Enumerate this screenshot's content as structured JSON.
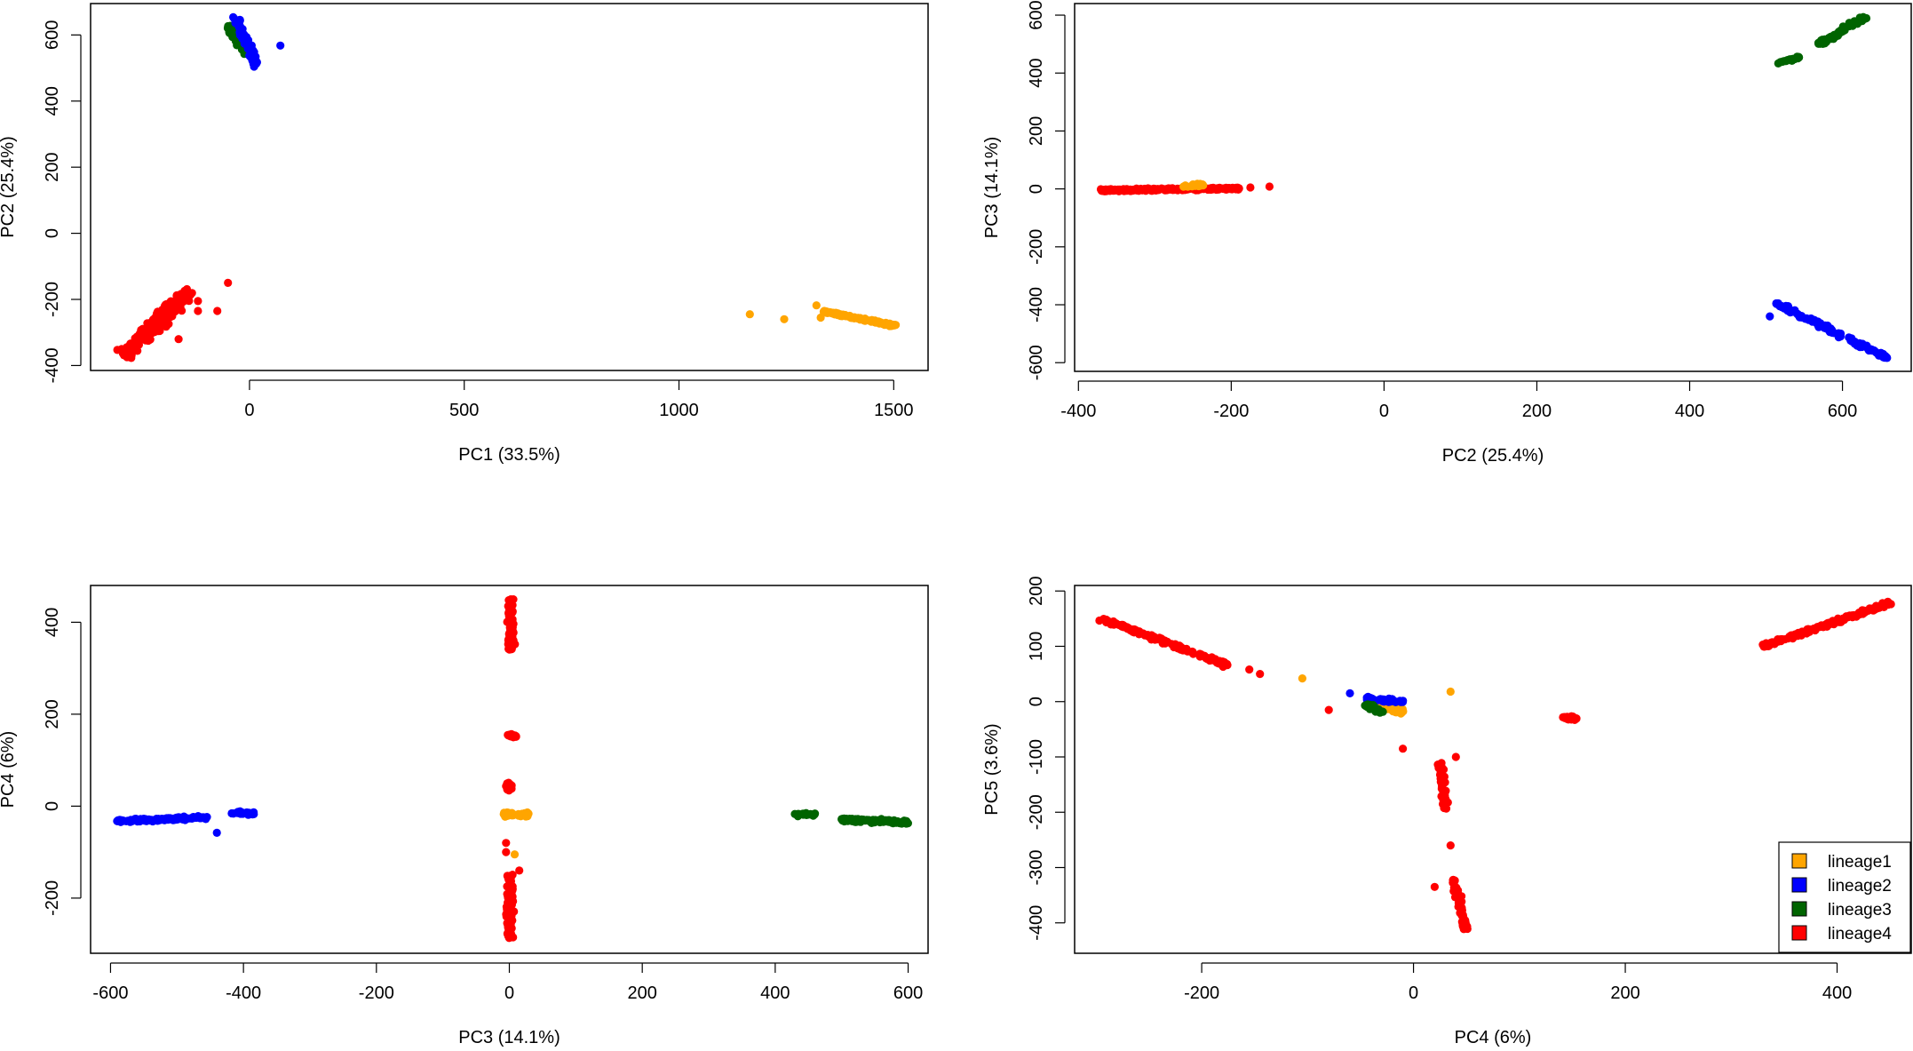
{
  "colors": {
    "lineage1": "#ffa500",
    "lineage2": "#0000ff",
    "lineage3": "#006400",
    "lineage4": "#ff0000"
  },
  "legend": {
    "placement": "bottom-right of PC4 vs PC5 panel",
    "entries": [
      "lineage1",
      "lineage2",
      "lineage3",
      "lineage4"
    ]
  },
  "chart_data": [
    {
      "type": "scatter",
      "title": "",
      "xlabel": "PC1 (33.5%)",
      "ylabel": "PC2 (25.4%)",
      "xlim": [
        -370,
        1580
      ],
      "ylim": [
        -415,
        695
      ],
      "xticks": [
        0,
        500,
        1000,
        1500
      ],
      "yticks": [
        -400,
        -200,
        0,
        200,
        400,
        600
      ],
      "clusters": [
        {
          "series": "lineage4",
          "kind": "band",
          "x1": -290,
          "y1": -365,
          "x2": -140,
          "y2": -175,
          "spread": 28,
          "n": 230
        },
        {
          "series": "lineage4",
          "kind": "points",
          "points": [
            [
              -50,
              -150
            ],
            [
              -75,
              -235
            ],
            [
              -120,
              -235
            ],
            [
              -165,
              -320
            ],
            [
              -120,
              -205
            ]
          ]
        },
        {
          "series": "lineage3",
          "kind": "band",
          "x1": -50,
          "y1": 625,
          "x2": -5,
          "y2": 545,
          "spread": 12,
          "n": 70
        },
        {
          "series": "lineage2",
          "kind": "band",
          "x1": -35,
          "y1": 655,
          "x2": 15,
          "y2": 510,
          "spread": 12,
          "n": 90
        },
        {
          "series": "lineage2",
          "kind": "points",
          "points": [
            [
              72,
              568
            ]
          ]
        },
        {
          "series": "lineage1",
          "kind": "band",
          "x1": 1330,
          "y1": -235,
          "x2": 1505,
          "y2": -280,
          "spread": 5,
          "n": 140
        },
        {
          "series": "lineage1",
          "kind": "points",
          "points": [
            [
              1165,
              -245
            ],
            [
              1245,
              -260
            ],
            [
              1320,
              -218
            ],
            [
              1330,
              -255
            ]
          ]
        }
      ]
    },
    {
      "type": "scatter",
      "title": "",
      "xlabel": "PC2 (25.4%)",
      "ylabel": "PC3 (14.1%)",
      "xlim": [
        -405,
        690
      ],
      "ylim": [
        -630,
        640
      ],
      "xticks": [
        -400,
        -200,
        0,
        200,
        400,
        600
      ],
      "yticks": [
        -600,
        -400,
        -200,
        0,
        200,
        400,
        600
      ],
      "clusters": [
        {
          "series": "lineage4",
          "kind": "band",
          "x1": -370,
          "y1": -5,
          "x2": -190,
          "y2": 2,
          "spread": 6,
          "n": 260
        },
        {
          "series": "lineage4",
          "kind": "points",
          "points": [
            [
              -150,
              8
            ],
            [
              -175,
              5
            ]
          ]
        },
        {
          "series": "lineage1",
          "kind": "band",
          "x1": -265,
          "y1": 10,
          "x2": -235,
          "y2": 15,
          "spread": 6,
          "n": 25
        },
        {
          "series": "lineage3",
          "kind": "band",
          "x1": 515,
          "y1": 433,
          "x2": 545,
          "y2": 455,
          "spread": 5,
          "n": 20
        },
        {
          "series": "lineage3",
          "kind": "band",
          "x1": 570,
          "y1": 500,
          "x2": 630,
          "y2": 595,
          "spread": 8,
          "n": 70
        },
        {
          "series": "lineage2",
          "kind": "band",
          "x1": 510,
          "y1": -390,
          "x2": 660,
          "y2": -585,
          "spread": 8,
          "n": 120
        },
        {
          "series": "lineage2",
          "kind": "points",
          "points": [
            [
              505,
              -440
            ]
          ]
        }
      ]
    },
    {
      "type": "scatter",
      "title": "",
      "xlabel": "PC3 (14.1%)",
      "ylabel": "PC4 (6%)",
      "xlim": [
        -630,
        630
      ],
      "ylim": [
        -320,
        480
      ],
      "xticks": [
        -600,
        -400,
        -200,
        0,
        200,
        400,
        600
      ],
      "yticks": [
        -200,
        0,
        200,
        400
      ],
      "clusters": [
        {
          "series": "lineage2",
          "kind": "band",
          "x1": -590,
          "y1": -33,
          "x2": -455,
          "y2": -25,
          "spread": 5,
          "n": 130
        },
        {
          "series": "lineage2",
          "kind": "band",
          "x1": -420,
          "y1": -15,
          "x2": -385,
          "y2": -15,
          "spread": 5,
          "n": 25
        },
        {
          "series": "lineage2",
          "kind": "points",
          "points": [
            [
              -440,
              -58
            ]
          ]
        },
        {
          "series": "lineage3",
          "kind": "band",
          "x1": 430,
          "y1": -18,
          "x2": 460,
          "y2": -18,
          "spread": 5,
          "n": 20
        },
        {
          "series": "lineage3",
          "kind": "band",
          "x1": 500,
          "y1": -30,
          "x2": 600,
          "y2": -35,
          "spread": 6,
          "n": 110
        },
        {
          "series": "lineage1",
          "kind": "band",
          "x1": -10,
          "y1": -18,
          "x2": 30,
          "y2": -18,
          "spread": 7,
          "n": 40
        },
        {
          "series": "lineage1",
          "kind": "points",
          "points": [
            [
              8,
              -105
            ]
          ]
        },
        {
          "series": "lineage4",
          "kind": "band",
          "x1": 2,
          "y1": 450,
          "x2": 3,
          "y2": 340,
          "spread": 7,
          "n": 90
        },
        {
          "series": "lineage4",
          "kind": "band",
          "x1": 0,
          "y1": 157,
          "x2": 10,
          "y2": 150,
          "spread": 5,
          "n": 20
        },
        {
          "series": "lineage4",
          "kind": "band",
          "x1": -2,
          "y1": 50,
          "x2": 0,
          "y2": 35,
          "spread": 6,
          "n": 25
        },
        {
          "series": "lineage4",
          "kind": "band",
          "x1": 0,
          "y1": -150,
          "x2": 1,
          "y2": -290,
          "spread": 7,
          "n": 110
        },
        {
          "series": "lineage4",
          "kind": "points",
          "points": [
            [
              -5,
              -80
            ],
            [
              -5,
              -100
            ],
            [
              15,
              -140
            ]
          ]
        }
      ]
    },
    {
      "type": "scatter",
      "title": "",
      "xlabel": "PC4 (6%)",
      "ylabel": "PC5 (3.6%)",
      "xlim": [
        -320,
        470
      ],
      "ylim": [
        -455,
        210
      ],
      "xticks": [
        -200,
        0,
        200,
        400
      ],
      "yticks": [
        -400,
        -300,
        -200,
        -100,
        0,
        100,
        200
      ],
      "clusters": [
        {
          "series": "lineage4",
          "kind": "band",
          "x1": -295,
          "y1": 150,
          "x2": -175,
          "y2": 65,
          "spread": 5,
          "n": 160
        },
        {
          "series": "lineage4",
          "kind": "points",
          "points": [
            [
              -155,
              58
            ],
            [
              -145,
              50
            ],
            [
              -80,
              -15
            ],
            [
              -10,
              -85
            ]
          ]
        },
        {
          "series": "lineage4",
          "kind": "band",
          "x1": 330,
          "y1": 100,
          "x2": 450,
          "y2": 178,
          "spread": 5,
          "n": 160
        },
        {
          "series": "lineage4",
          "kind": "band",
          "x1": 140,
          "y1": -30,
          "x2": 155,
          "y2": -30,
          "spread": 5,
          "n": 20
        },
        {
          "series": "lineage4",
          "kind": "band",
          "x1": 25,
          "y1": -110,
          "x2": 30,
          "y2": -200,
          "spread": 4,
          "n": 45
        },
        {
          "series": "lineage4",
          "kind": "band",
          "x1": 38,
          "y1": -320,
          "x2": 50,
          "y2": -420,
          "spread": 4,
          "n": 55
        },
        {
          "series": "lineage4",
          "kind": "points",
          "points": [
            [
              35,
              -260
            ],
            [
              20,
              -335
            ],
            [
              40,
              -100
            ]
          ]
        },
        {
          "series": "lineage1",
          "kind": "band",
          "x1": -35,
          "y1": -5,
          "x2": -10,
          "y2": -20,
          "spread": 7,
          "n": 45
        },
        {
          "series": "lineage1",
          "kind": "points",
          "points": [
            [
              -105,
              42
            ],
            [
              35,
              18
            ]
          ]
        },
        {
          "series": "lineage2",
          "kind": "band",
          "x1": -45,
          "y1": 5,
          "x2": -10,
          "y2": 0,
          "spread": 6,
          "n": 35
        },
        {
          "series": "lineage2",
          "kind": "points",
          "points": [
            [
              -60,
              15
            ]
          ]
        },
        {
          "series": "lineage3",
          "kind": "band",
          "x1": -45,
          "y1": -5,
          "x2": -30,
          "y2": -20,
          "spread": 6,
          "n": 30
        }
      ]
    }
  ]
}
